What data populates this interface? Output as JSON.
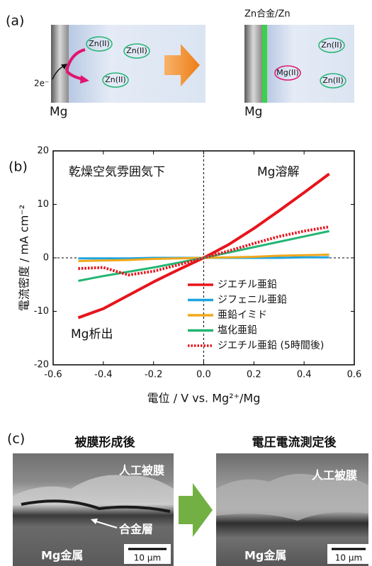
{
  "panel_a": {
    "label": "(a)",
    "before": {
      "ions": [
        "Zn(II)",
        "Zn(II)",
        "Zn(II)"
      ],
      "electrons": "2e⁻",
      "electrode": "Mg"
    },
    "after": {
      "layer": "Zn合金/Zn",
      "ions": [
        "Zn(II)",
        "Mg(II)",
        "Zn(II)"
      ],
      "electrode": "Mg"
    }
  },
  "panel_b": {
    "label": "(b)"
  },
  "chart_data": {
    "type": "line",
    "xlabel": "電位 / V vs. Mg²⁺/Mg",
    "ylabel": "電流密度 / mA cm⁻²",
    "annotations": [
      "乾燥空気雰囲気下",
      "Mg溶解",
      "Mg析出"
    ],
    "x": [
      -0.5,
      -0.4,
      -0.3,
      -0.2,
      -0.1,
      0,
      0.1,
      0.2,
      0.3,
      0.4,
      0.5
    ],
    "series": [
      {
        "name": "ジエチル亜鉛",
        "color": "#e8141c",
        "values": [
          -11.2,
          -9.5,
          -7,
          -4.5,
          -2.2,
          0,
          2.5,
          5.5,
          8.8,
          12.2,
          15.7
        ]
      },
      {
        "name": "ジフェニル亜鉛",
        "color": "#1fa3e0",
        "values": [
          -0.1,
          -0.1,
          -0.1,
          0,
          0,
          0,
          0,
          0,
          0,
          0.1,
          0.1
        ]
      },
      {
        "name": "亜鉛イミド",
        "color": "#f0a81c",
        "values": [
          -0.6,
          -0.5,
          -0.4,
          -0.2,
          -0.1,
          0,
          0.1,
          0.2,
          0.4,
          0.5,
          0.6
        ]
      },
      {
        "name": "塩化亜鉛",
        "color": "#22b573",
        "values": [
          -4.3,
          -3.4,
          -2.6,
          -1.8,
          -0.9,
          0,
          1,
          2,
          3,
          4,
          5
        ]
      },
      {
        "name": "ジエチル亜鉛 (5時間後)",
        "color": "#e8141c",
        "style": "dotted",
        "values": [
          -2,
          -1.8,
          -3.2,
          -2.5,
          -1.3,
          0,
          1.3,
          2.7,
          4,
          5,
          5.8
        ]
      }
    ],
    "xlim": [
      -0.6,
      0.6
    ],
    "xticks": [
      -0.6,
      -0.4,
      -0.2,
      {
        "value": 0,
        "label": "0.0"
      },
      0.2,
      0.4,
      0.6
    ],
    "ylim": [
      -20,
      20
    ],
    "yticks": [
      -20,
      -10,
      0,
      10,
      20
    ],
    "legend": "lower right"
  },
  "panel_c": {
    "label": "(c)",
    "before": {
      "title": "被膜形成後",
      "film": "人工被膜",
      "alloy": "合金層",
      "metal": "Mg金属",
      "scale": "10 μm"
    },
    "after": {
      "title": "電圧電流測定後",
      "film": "人工被膜",
      "metal": "Mg金属",
      "scale": "10 μm"
    }
  }
}
